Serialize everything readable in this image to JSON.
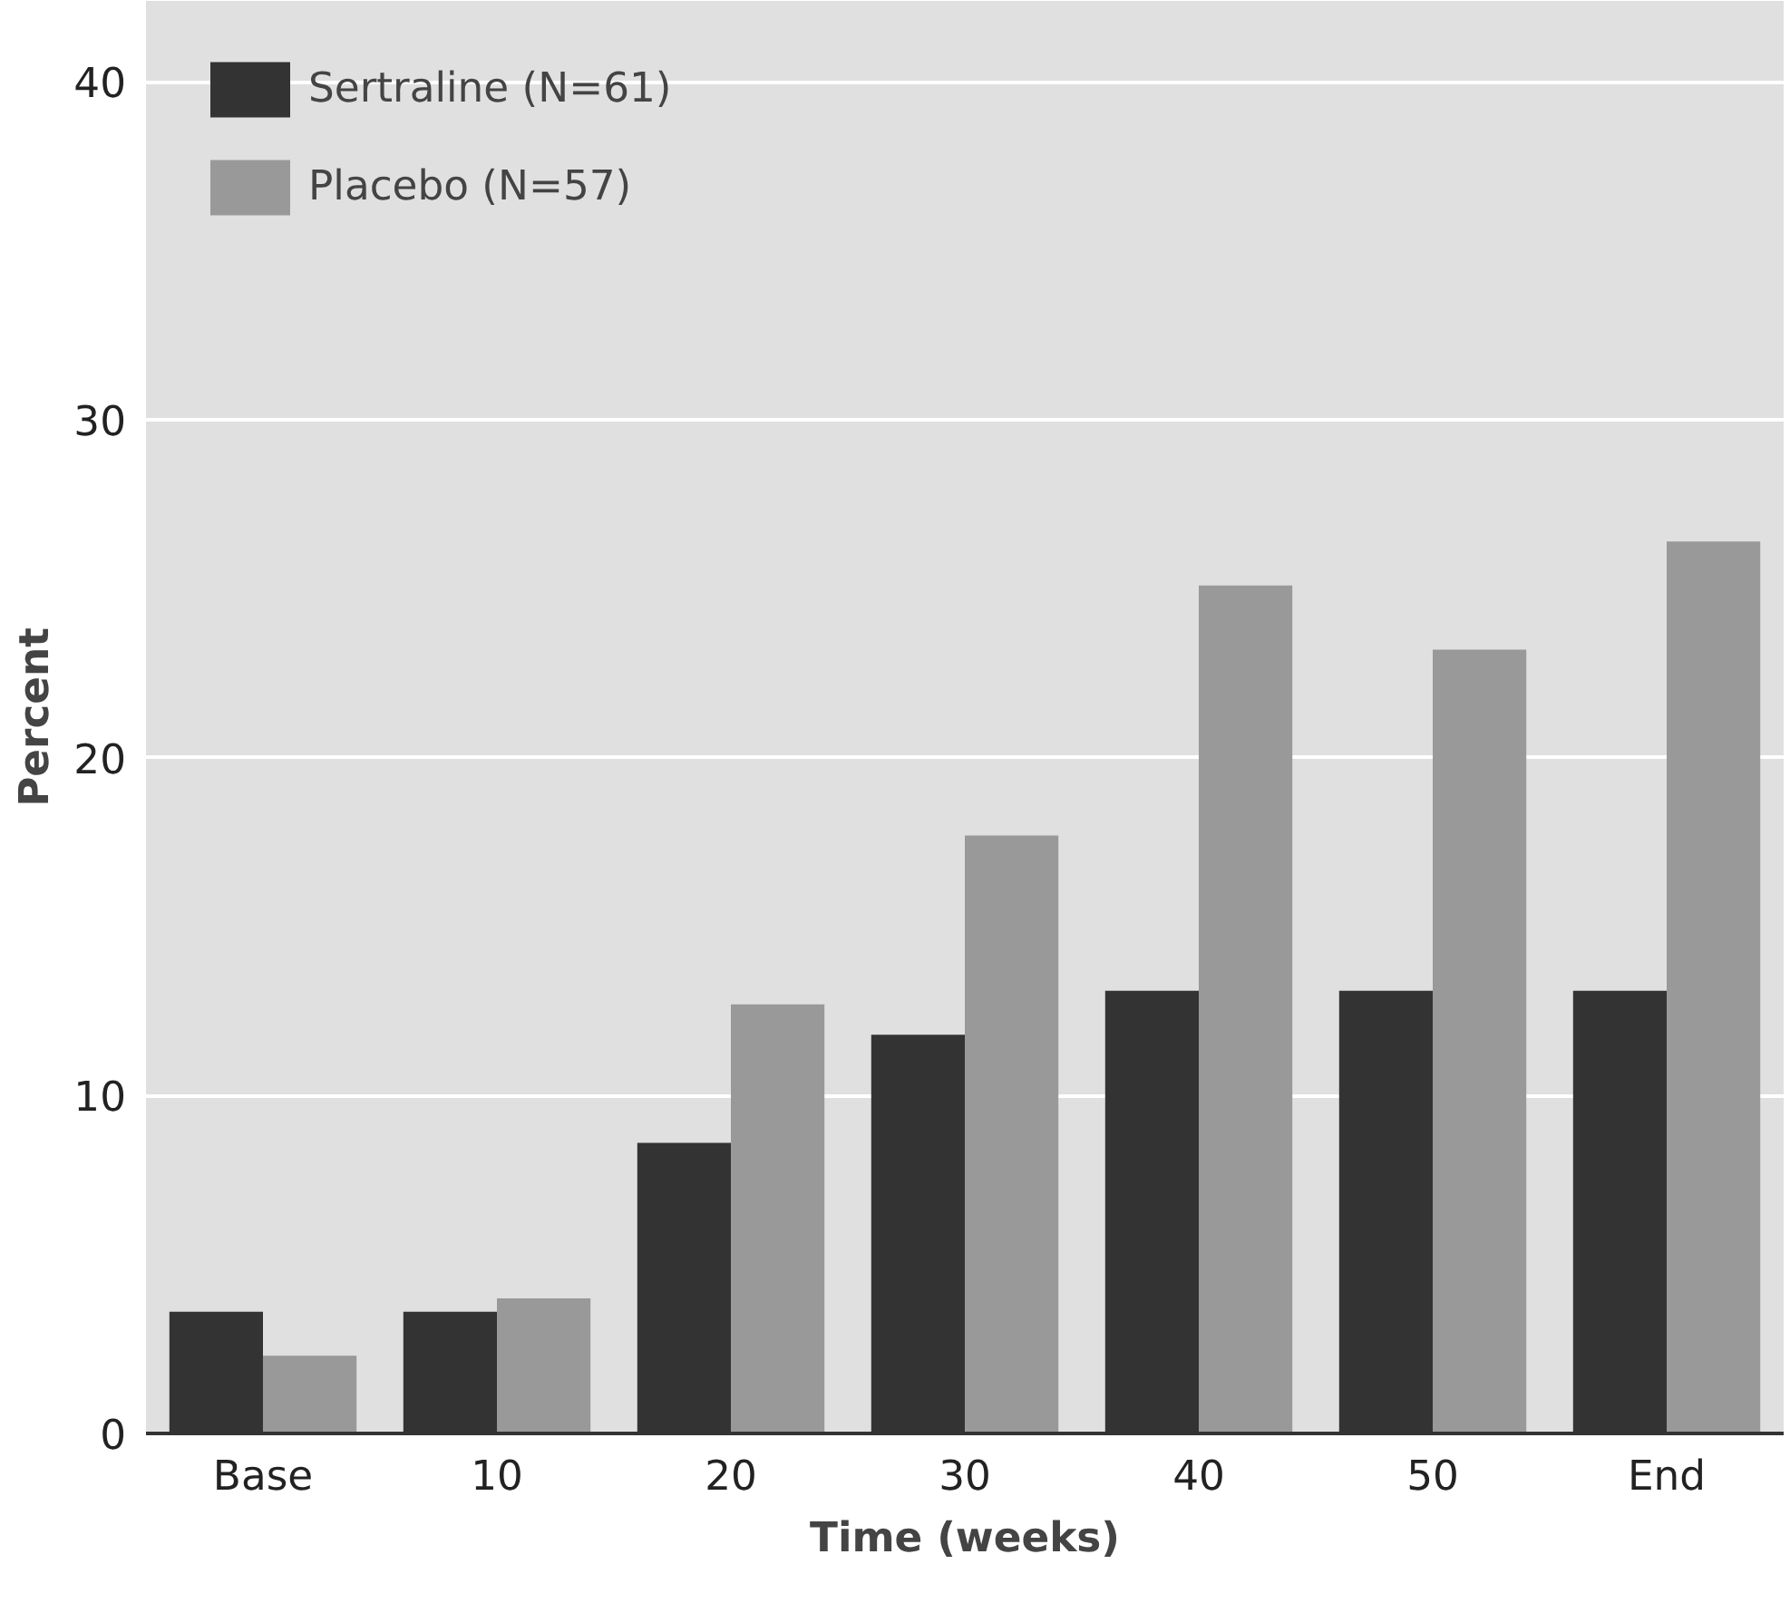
{
  "chart_data": {
    "type": "bar",
    "xlabel": "Time (weeks)",
    "ylabel": "Percent",
    "categories": [
      "Base",
      "10",
      "20",
      "30",
      "40",
      "50",
      "End"
    ],
    "series": [
      {
        "name": "Sertraline (N=61)",
        "color": "#333333",
        "values": [
          3.6,
          3.6,
          8.6,
          11.8,
          13.1,
          13.1,
          13.1
        ]
      },
      {
        "name": "Placebo (N=57)",
        "color": "#999999",
        "values": [
          2.3,
          4.0,
          12.7,
          17.7,
          25.1,
          23.2,
          26.4
        ]
      }
    ],
    "ylim": [
      0,
      42.4
    ],
    "yticks": [
      0,
      10,
      20,
      30,
      40
    ],
    "grid": "y",
    "legend": "top left"
  }
}
